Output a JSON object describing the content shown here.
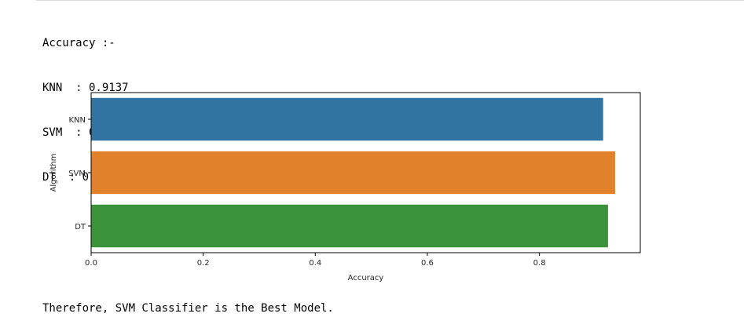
{
  "output": {
    "lines": [
      "Accuracy :-",
      "KNN  : 0.9137",
      "SVM  : 0.9350",
      "DT  : 0.9224"
    ],
    "conclusion": "Therefore, SVM Classifier is the Best Model."
  },
  "chart_data": {
    "type": "bar",
    "orientation": "horizontal",
    "categories": [
      "KNN",
      "SVM",
      "DT"
    ],
    "values": [
      0.9137,
      0.935,
      0.9224
    ],
    "colors": [
      "#3274a1",
      "#e1812c",
      "#3a923a"
    ],
    "title": "",
    "xlabel": "Accuracy",
    "ylabel": "Algorithm",
    "xlim": [
      0,
      0.98
    ],
    "xticks": [
      0.0,
      0.2,
      0.4,
      0.6,
      0.8
    ],
    "xtick_labels": [
      "0.0",
      "0.2",
      "0.4",
      "0.6",
      "0.8"
    ],
    "grid": false,
    "legend": "none"
  }
}
